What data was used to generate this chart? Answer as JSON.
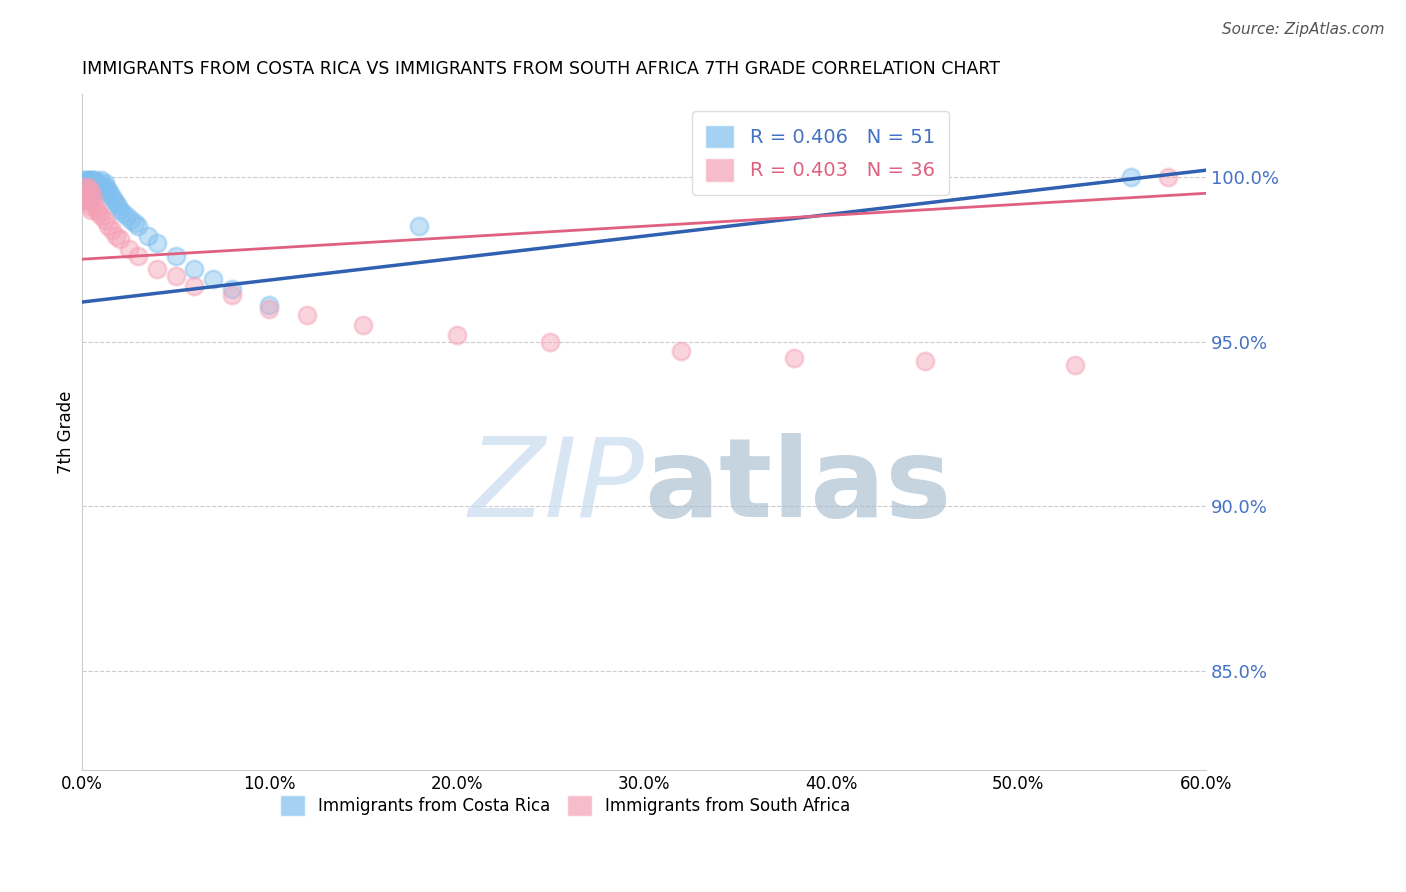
{
  "title": "IMMIGRANTS FROM COSTA RICA VS IMMIGRANTS FROM SOUTH AFRICA 7TH GRADE CORRELATION CHART",
  "source": "Source: ZipAtlas.com",
  "ylabel": "7th Grade",
  "xlim": [
    0.0,
    0.6
  ],
  "ylim": [
    0.82,
    1.025
  ],
  "xticks": [
    0.0,
    0.1,
    0.2,
    0.3,
    0.4,
    0.5,
    0.6
  ],
  "xticklabels": [
    "0.0%",
    "10.0%",
    "20.0%",
    "30.0%",
    "40.0%",
    "50.0%",
    "60.0%"
  ],
  "yticks_right": [
    0.85,
    0.9,
    0.95,
    1.0
  ],
  "yticklabels_right": [
    "85.0%",
    "90.0%",
    "95.0%",
    "100.0%"
  ],
  "legend_blue_label": "R = 0.406   N = 51",
  "legend_pink_label": "R = 0.403   N = 36",
  "blue_color": "#7fbfef",
  "pink_color": "#f4a0b5",
  "blue_line_color": "#3060b0",
  "pink_line_color": "#e06080",
  "blue_x": [
    0.001,
    0.001,
    0.002,
    0.002,
    0.002,
    0.003,
    0.003,
    0.003,
    0.003,
    0.004,
    0.004,
    0.004,
    0.004,
    0.005,
    0.005,
    0.005,
    0.006,
    0.006,
    0.007,
    0.007,
    0.007,
    0.008,
    0.008,
    0.009,
    0.01,
    0.01,
    0.011,
    0.012,
    0.013,
    0.013,
    0.014,
    0.015,
    0.016,
    0.017,
    0.018,
    0.019,
    0.02,
    0.022,
    0.024,
    0.026,
    0.028,
    0.03,
    0.035,
    0.04,
    0.05,
    0.06,
    0.07,
    0.08,
    0.1,
    0.18,
    0.56
  ],
  "blue_y": [
    0.993,
    0.999,
    0.999,
    0.997,
    0.994,
    0.999,
    0.998,
    0.997,
    0.993,
    0.999,
    0.998,
    0.997,
    0.995,
    0.999,
    0.998,
    0.996,
    0.999,
    0.997,
    0.999,
    0.998,
    0.996,
    0.998,
    0.996,
    0.998,
    0.999,
    0.997,
    0.997,
    0.998,
    0.997,
    0.995,
    0.996,
    0.995,
    0.994,
    0.993,
    0.992,
    0.991,
    0.99,
    0.989,
    0.988,
    0.987,
    0.986,
    0.985,
    0.982,
    0.98,
    0.976,
    0.972,
    0.969,
    0.966,
    0.961,
    0.985,
    1.0
  ],
  "pink_x": [
    0.001,
    0.001,
    0.002,
    0.002,
    0.003,
    0.003,
    0.004,
    0.004,
    0.005,
    0.005,
    0.006,
    0.007,
    0.008,
    0.009,
    0.01,
    0.012,
    0.014,
    0.016,
    0.018,
    0.02,
    0.025,
    0.03,
    0.04,
    0.05,
    0.06,
    0.08,
    0.1,
    0.12,
    0.15,
    0.2,
    0.25,
    0.32,
    0.38,
    0.45,
    0.53,
    0.58
  ],
  "pink_y": [
    0.997,
    0.994,
    0.996,
    0.993,
    0.997,
    0.993,
    0.996,
    0.991,
    0.995,
    0.99,
    0.994,
    0.991,
    0.99,
    0.989,
    0.988,
    0.987,
    0.985,
    0.984,
    0.982,
    0.981,
    0.978,
    0.976,
    0.972,
    0.97,
    0.967,
    0.964,
    0.96,
    0.958,
    0.955,
    0.952,
    0.95,
    0.947,
    0.945,
    0.944,
    0.943,
    1.0
  ],
  "blue_trend_x": [
    0.0,
    0.6
  ],
  "blue_trend_y": [
    0.962,
    1.002
  ],
  "pink_trend_x": [
    0.0,
    0.6
  ],
  "pink_trend_y": [
    0.975,
    0.995
  ]
}
